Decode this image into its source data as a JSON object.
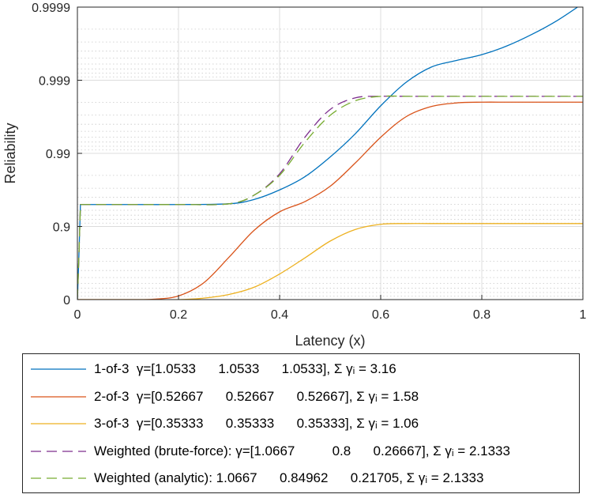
{
  "chart_data": {
    "type": "line",
    "title": "",
    "xlabel": "Latency (x)",
    "ylabel": "Reliability",
    "xlim": [
      0,
      1
    ],
    "ylim_nines": [
      0,
      4
    ],
    "y_scale": "nines (-log10(1-R))",
    "x_ticks": [
      0,
      0.2,
      0.4,
      0.6,
      0.8,
      1
    ],
    "x_tick_labels": [
      "0",
      "0.2",
      "0.4",
      "0.6",
      "0.8",
      "1"
    ],
    "y_ticks_nines": [
      0,
      1,
      2,
      3,
      4
    ],
    "y_tick_labels": [
      "0",
      "0.9",
      "0.99",
      "0.999",
      "0.9999"
    ],
    "grid": true,
    "legend_location": "bottom-outside",
    "series": [
      {
        "name": "1-of-3",
        "legend_label": "1-of-3  γ=[1.0533      1.0533      1.0533], Σ γᵢ = 3.16",
        "color": "#0072BD",
        "dash": "solid",
        "x": [
          0,
          0.003,
          0.006,
          0.01,
          0.1,
          0.2,
          0.3,
          0.35,
          0.4,
          0.45,
          0.5,
          0.55,
          0.6,
          0.65,
          0.7,
          0.75,
          0.8,
          0.85,
          0.9,
          0.95,
          1.0
        ],
        "y_nines": [
          0,
          0.6,
          1.3,
          1.3,
          1.3,
          1.3,
          1.31,
          1.37,
          1.5,
          1.68,
          1.95,
          2.27,
          2.65,
          2.97,
          3.18,
          3.27,
          3.35,
          3.47,
          3.63,
          3.82,
          4.05
        ]
      },
      {
        "name": "2-of-3",
        "legend_label": "2-of-3  γ=[0.52667      0.52667      0.52667], Σ γᵢ = 1.58",
        "color": "#D95319",
        "dash": "solid",
        "x": [
          0,
          0.1,
          0.15,
          0.2,
          0.25,
          0.3,
          0.35,
          0.4,
          0.45,
          0.5,
          0.55,
          0.6,
          0.65,
          0.7,
          0.75,
          0.8,
          0.85,
          0.9,
          0.95,
          1.0
        ],
        "y_nines": [
          0,
          0,
          0.005,
          0.05,
          0.23,
          0.58,
          0.95,
          1.2,
          1.34,
          1.55,
          1.87,
          2.22,
          2.5,
          2.64,
          2.69,
          2.7,
          2.7,
          2.7,
          2.7,
          2.7
        ]
      },
      {
        "name": "3-of-3",
        "legend_label": "3-of-3  γ=[0.35333      0.35333      0.35333], Σ γᵢ = 1.06",
        "color": "#EDB120",
        "dash": "solid",
        "x": [
          0,
          0.1,
          0.2,
          0.25,
          0.3,
          0.35,
          0.4,
          0.45,
          0.5,
          0.55,
          0.6,
          0.65,
          0.7,
          0.8,
          0.9,
          1.0
        ],
        "y_nines": [
          0,
          0,
          0.0,
          0.02,
          0.07,
          0.17,
          0.35,
          0.57,
          0.8,
          0.96,
          1.03,
          1.04,
          1.04,
          1.04,
          1.04,
          1.04
        ]
      },
      {
        "name": "Weighted (brute-force)",
        "legend_label": "Weighted (brute-force): γ=[1.0667          0.8      0.26667], Σ γᵢ = 2.1333",
        "color": "#7E2F8E",
        "dash": "dashed",
        "x": [
          0,
          0.003,
          0.006,
          0.01,
          0.1,
          0.2,
          0.3,
          0.35,
          0.4,
          0.45,
          0.5,
          0.55,
          0.6,
          0.65,
          0.7,
          0.8,
          0.9,
          1.0
        ],
        "y_nines": [
          0,
          0.6,
          1.3,
          1.3,
          1.3,
          1.3,
          1.31,
          1.43,
          1.72,
          2.22,
          2.6,
          2.76,
          2.78,
          2.78,
          2.78,
          2.78,
          2.78,
          2.78
        ]
      },
      {
        "name": "Weighted (analytic)",
        "legend_label": "Weighted (analytic): 1.0667      0.84962      0.21705, Σ γᵢ = 2.1333",
        "color": "#77AC30",
        "dash": "dashed",
        "x": [
          0,
          0.003,
          0.006,
          0.01,
          0.1,
          0.2,
          0.3,
          0.35,
          0.4,
          0.45,
          0.5,
          0.55,
          0.6,
          0.65,
          0.7,
          0.8,
          0.9,
          1.0
        ],
        "y_nines": [
          0,
          0.6,
          1.3,
          1.3,
          1.3,
          1.3,
          1.31,
          1.43,
          1.7,
          2.15,
          2.52,
          2.72,
          2.78,
          2.78,
          2.78,
          2.78,
          2.78,
          2.78
        ]
      }
    ]
  }
}
